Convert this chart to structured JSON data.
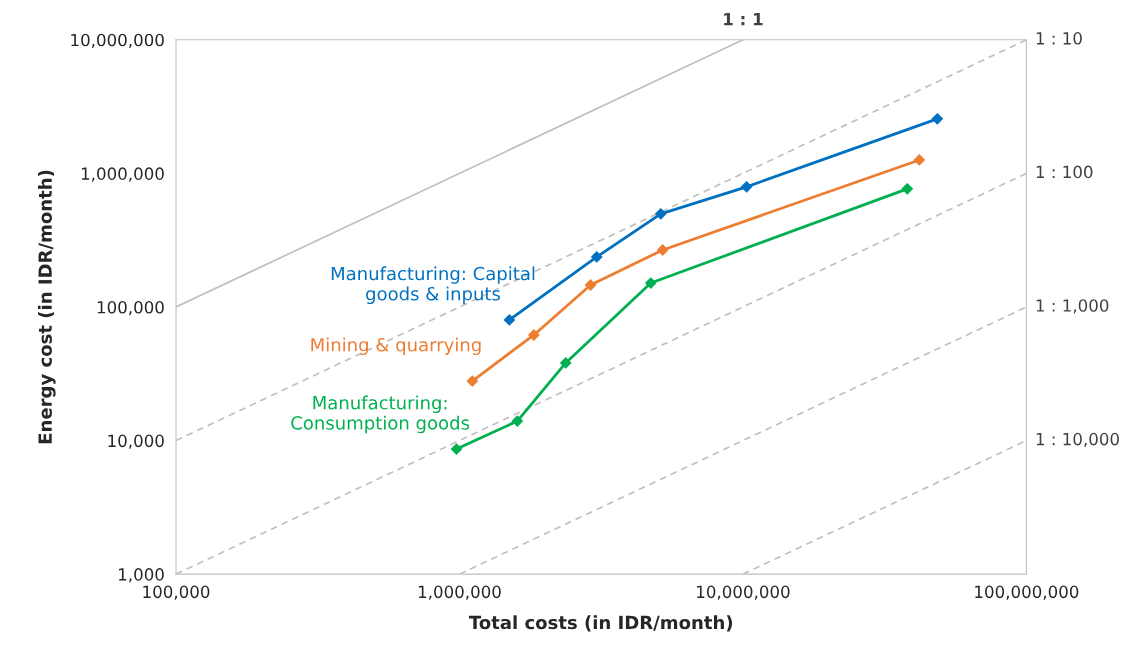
{
  "chart_data": {
    "type": "line",
    "xlabel": "Total costs (in IDR/month)",
    "ylabel": "Energy cost (in IDR/month)",
    "log": "xy",
    "grid": false,
    "legend": false,
    "marker": "diamond",
    "xlim": [
      100000,
      100000000
    ],
    "ylim": [
      1000,
      10000000
    ],
    "xticks": [
      {
        "value": 100000,
        "label": "100,000"
      },
      {
        "value": 1000000,
        "label": "1,000,000"
      },
      {
        "value": 10000000,
        "label": "10,000,000"
      },
      {
        "value": 100000000,
        "label": "100,000,000"
      }
    ],
    "yticks": [
      {
        "value": 1000,
        "label": "1,000"
      },
      {
        "value": 10000,
        "label": "10,000"
      },
      {
        "value": 100000,
        "label": "100,000"
      },
      {
        "value": 1000000,
        "label": "1,000,000"
      },
      {
        "value": 10000000,
        "label": "10,000,000"
      }
    ],
    "series": [
      {
        "name": "1 : 1",
        "color": "#bfbfbf",
        "line_style": "solid",
        "marker": "none",
        "x": [
          100000,
          10000000
        ],
        "values": [
          100000,
          10000000
        ]
      },
      {
        "name": "1 : 10",
        "color": "#bfbfbf",
        "line_style": "dashed",
        "marker": "none",
        "x": [
          100000,
          100000000
        ],
        "values": [
          10000,
          10000000
        ]
      },
      {
        "name": "1 : 100",
        "color": "#bfbfbf",
        "line_style": "dashed",
        "marker": "none",
        "x": [
          100000,
          100000000
        ],
        "values": [
          1000,
          1000000
        ]
      },
      {
        "name": "1 : 1,000",
        "color": "#bfbfbf",
        "line_style": "dashed",
        "marker": "none",
        "x": [
          1000000,
          100000000
        ],
        "values": [
          1000,
          100000
        ]
      },
      {
        "name": "1 : 10,000",
        "color": "#bfbfbf",
        "line_style": "dashed",
        "marker": "none",
        "x": [
          10000000,
          100000000
        ],
        "values": [
          1000,
          10000
        ]
      },
      {
        "name": "Manufacturing: Capital\ngoods & inputs",
        "color": "#0070c0",
        "x": [
          1500000,
          3050000,
          5130000,
          10300000,
          48500000
        ],
        "values": [
          80000,
          237000,
          498000,
          793000,
          2560000
        ]
      },
      {
        "name": "Mining & quarrying",
        "color": "#ed7d31",
        "x": [
          1110000,
          1830000,
          2900000,
          5210000,
          41900000
        ],
        "values": [
          27900,
          61700,
          146000,
          267000,
          1260000
        ]
      },
      {
        "name": "Manufacturing:\nConsumption goods",
        "color": "#00b050",
        "x": [
          976000,
          1600000,
          2370000,
          4730000,
          38000000
        ],
        "values": [
          8630,
          14000,
          38100,
          151000,
          766000
        ]
      }
    ]
  }
}
